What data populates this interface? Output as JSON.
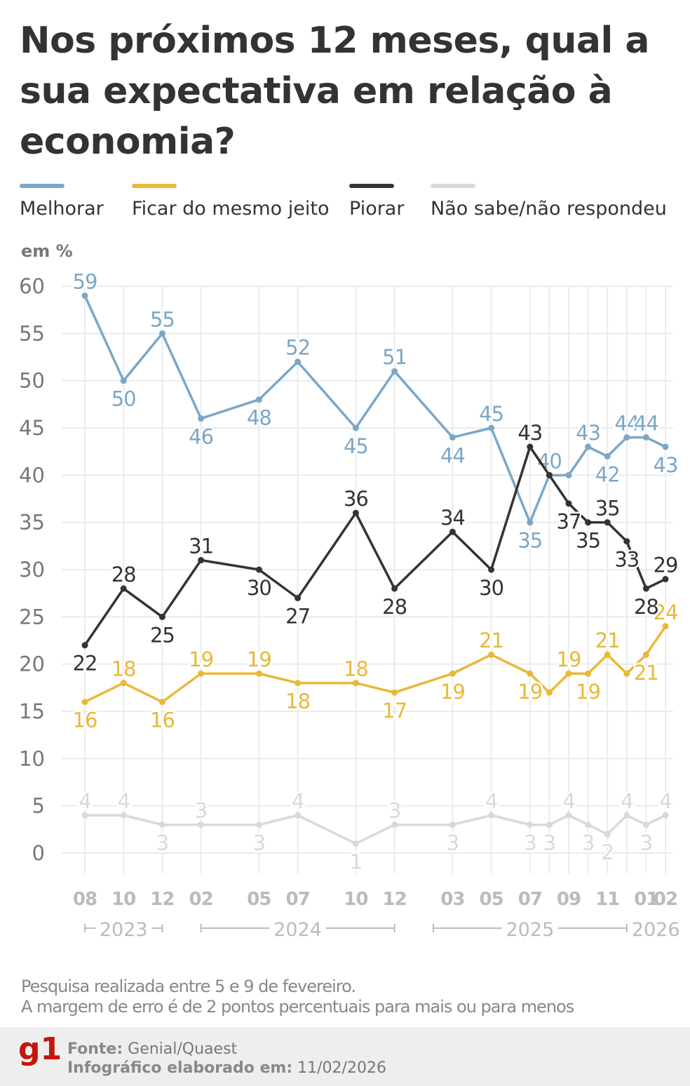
{
  "title": "Nos próximos 12 meses, qual a sua expectativa em relação à economia?",
  "unit_label": "em %",
  "notes": [
    "Pesquisa realizada entre 5 e 9 de fevereiro.",
    "A margem de erro é de 2 pontos percentuais para mais ou para menos"
  ],
  "footer": {
    "logo": "g1",
    "source_label": "Fonte:",
    "source": "Genial/Quaest",
    "date_label": "Infográfico elaborado em:",
    "date": "11/02/2026"
  },
  "chart_data": {
    "type": "line",
    "ylim": [
      0,
      60
    ],
    "yticks": [
      0,
      5,
      10,
      15,
      20,
      25,
      30,
      35,
      40,
      45,
      50,
      55,
      60
    ],
    "grid": true,
    "legend_position": "top",
    "x": [
      "2023-08",
      "2023-10",
      "2023-12",
      "2024-02",
      "2024-05",
      "2024-07",
      "2024-10",
      "2024-12",
      "2025-03",
      "2025-05",
      "2025-07",
      "2025-08",
      "2025-09",
      "2025-10",
      "2025-11",
      "2025-12",
      "2026-01",
      "2026-02"
    ],
    "xtick_labels": [
      {
        "x": "2023-08",
        "label": "08"
      },
      {
        "x": "2023-10",
        "label": "10"
      },
      {
        "x": "2023-12",
        "label": "12"
      },
      {
        "x": "2024-02",
        "label": "02"
      },
      {
        "x": "2024-05",
        "label": "05"
      },
      {
        "x": "2024-07",
        "label": "07"
      },
      {
        "x": "2024-10",
        "label": "10"
      },
      {
        "x": "2024-12",
        "label": "12"
      },
      {
        "x": "2025-03",
        "label": "03"
      },
      {
        "x": "2025-05",
        "label": "05"
      },
      {
        "x": "2025-07",
        "label": "07"
      },
      {
        "x": "2025-09",
        "label": "09"
      },
      {
        "x": "2025-11",
        "label": "11"
      },
      {
        "x": "2026-01",
        "label": "01"
      },
      {
        "x": "2026-02",
        "label": "02"
      }
    ],
    "years": [
      {
        "label": "2023",
        "from": "2023-08",
        "to": "2023-12"
      },
      {
        "label": "2024",
        "from": "2024-02",
        "to": "2024-12"
      },
      {
        "label": "2025",
        "from": "2025-02",
        "to": "2025-12"
      },
      {
        "label": "2026",
        "from": "2026-01",
        "to": "2026-02"
      }
    ],
    "series": [
      {
        "name": "Melhorar",
        "color": "#7ba7c7",
        "values": [
          59,
          50,
          55,
          46,
          48,
          52,
          45,
          51,
          44,
          45,
          35,
          40,
          40,
          43,
          42,
          44,
          44,
          43
        ],
        "labels": [
          "59",
          "50",
          "55",
          "46",
          "48",
          "52",
          "45",
          "51",
          "44",
          "45",
          "35",
          "40",
          "",
          "43",
          "42",
          "44",
          "44",
          "43"
        ]
      },
      {
        "name": "Ficar do mesmo jeito",
        "color": "#e8b838",
        "values": [
          16,
          18,
          16,
          19,
          19,
          18,
          18,
          17,
          19,
          21,
          19,
          17,
          19,
          19,
          21,
          19,
          21,
          24
        ],
        "labels": [
          "16",
          "18",
          "16",
          "19",
          "19",
          "18",
          "18",
          "17",
          "19",
          "21",
          "19",
          "",
          "19",
          "19",
          "21",
          "",
          "21",
          "24"
        ]
      },
      {
        "name": "Piorar",
        "color": "#333333",
        "values": [
          22,
          28,
          25,
          31,
          30,
          27,
          36,
          28,
          34,
          30,
          43,
          40,
          37,
          35,
          35,
          33,
          28,
          29
        ],
        "labels": [
          "22",
          "28",
          "25",
          "31",
          "30",
          "27",
          "36",
          "28",
          "34",
          "30",
          "43",
          "",
          "37",
          "35",
          "35",
          "33",
          "28",
          "29"
        ]
      },
      {
        "name": "Não sabe/não respondeu",
        "color": "#d9d9d9",
        "values": [
          4,
          4,
          3,
          3,
          3,
          4,
          1,
          3,
          3,
          4,
          3,
          3,
          4,
          3,
          2,
          4,
          3,
          4
        ],
        "labels": [
          "4",
          "4",
          "3",
          "3",
          "3",
          "4",
          "1",
          "3",
          "3",
          "4",
          "3",
          "3",
          "4",
          "3",
          "2",
          "4",
          "3",
          "4"
        ]
      }
    ]
  }
}
